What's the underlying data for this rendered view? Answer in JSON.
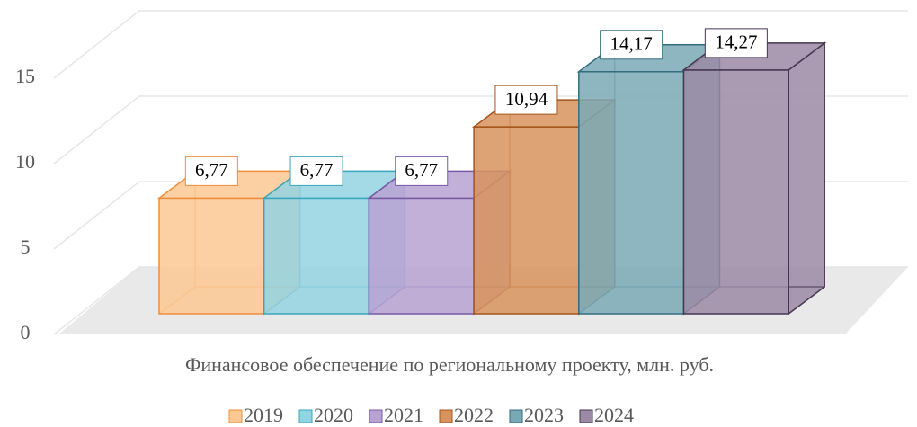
{
  "chart_data": {
    "type": "bar3d",
    "categories": [
      "Финансовое обеспечение по региональному проекту, млн. руб."
    ],
    "ylim": [
      0,
      15
    ],
    "yticks": [
      0,
      5,
      10,
      15
    ],
    "grid": true,
    "legend": "bottom",
    "series": [
      {
        "name": "2019",
        "color": "#fbc892",
        "edge": "#ef8e3a",
        "values": [
          6.77
        ],
        "value_labels": [
          "6,77"
        ]
      },
      {
        "name": "2020",
        "color": "#93d4e2",
        "edge": "#3aa6bd",
        "values": [
          6.77
        ],
        "value_labels": [
          "6,77"
        ]
      },
      {
        "name": "2021",
        "color": "#b8a2d2",
        "edge": "#7859a6",
        "values": [
          6.77
        ],
        "value_labels": [
          "6,77"
        ]
      },
      {
        "name": "2022",
        "color": "#d8935c",
        "edge": "#a4541b",
        "values": [
          10.94
        ],
        "value_labels": [
          "10,94"
        ]
      },
      {
        "name": "2023",
        "color": "#7aa9b6",
        "edge": "#336e7e",
        "values": [
          14.17
        ],
        "value_labels": [
          "14,17"
        ]
      },
      {
        "name": "2024",
        "color": "#9b89a6",
        "edge": "#463752",
        "values": [
          14.27
        ],
        "value_labels": [
          "14,27"
        ]
      }
    ]
  }
}
